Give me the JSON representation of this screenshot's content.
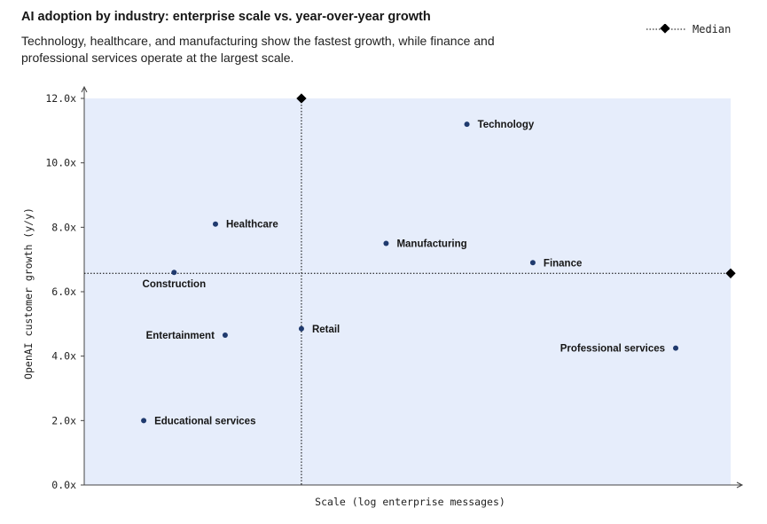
{
  "chart_data": {
    "type": "scatter",
    "title": "AI adoption by industry: enterprise scale vs. year-over-year growth",
    "subtitle": "Technology, healthcare, and manufacturing show the fastest growth, while finance and professional services operate at the largest scale.",
    "xlabel": "Scale (log enterprise messages)",
    "ylabel": "OpenAI customer growth (y/y)",
    "xlim": [
      0,
      100
    ],
    "ylim": [
      0,
      12
    ],
    "yticks": [
      {
        "value": 0,
        "label": "0.0x"
      },
      {
        "value": 2,
        "label": "2.0x"
      },
      {
        "value": 4,
        "label": "4.0x"
      },
      {
        "value": 6,
        "label": "6.0x"
      },
      {
        "value": 8,
        "label": "8.0x"
      },
      {
        "value": 10,
        "label": "10.0x"
      },
      {
        "value": 12,
        "label": "12.0x"
      }
    ],
    "points": [
      {
        "label": "Technology",
        "x": 59.2,
        "y": 11.2,
        "label_pos": "right"
      },
      {
        "label": "Healthcare",
        "x": 20.3,
        "y": 8.1,
        "label_pos": "right"
      },
      {
        "label": "Manufacturing",
        "x": 46.7,
        "y": 7.5,
        "label_pos": "right"
      },
      {
        "label": "Finance",
        "x": 69.4,
        "y": 6.9,
        "label_pos": "right"
      },
      {
        "label": "Construction",
        "x": 13.9,
        "y": 6.6,
        "label_pos": "below"
      },
      {
        "label": "Retail",
        "x": 33.6,
        "y": 4.85,
        "label_pos": "right"
      },
      {
        "label": "Entertainment",
        "x": 21.8,
        "y": 4.65,
        "label_pos": "left"
      },
      {
        "label": "Professional services",
        "x": 91.5,
        "y": 4.25,
        "label_pos": "left"
      },
      {
        "label": "Educational services",
        "x": 9.2,
        "y": 2.0,
        "label_pos": "right"
      }
    ],
    "median": {
      "label": "Median",
      "x": 33.6,
      "y": 6.57
    },
    "colors": {
      "plot_background": "#e6edfb",
      "point": "#1f3a6e",
      "median": "#000000"
    },
    "grid": false,
    "legend_position": "top-right"
  }
}
